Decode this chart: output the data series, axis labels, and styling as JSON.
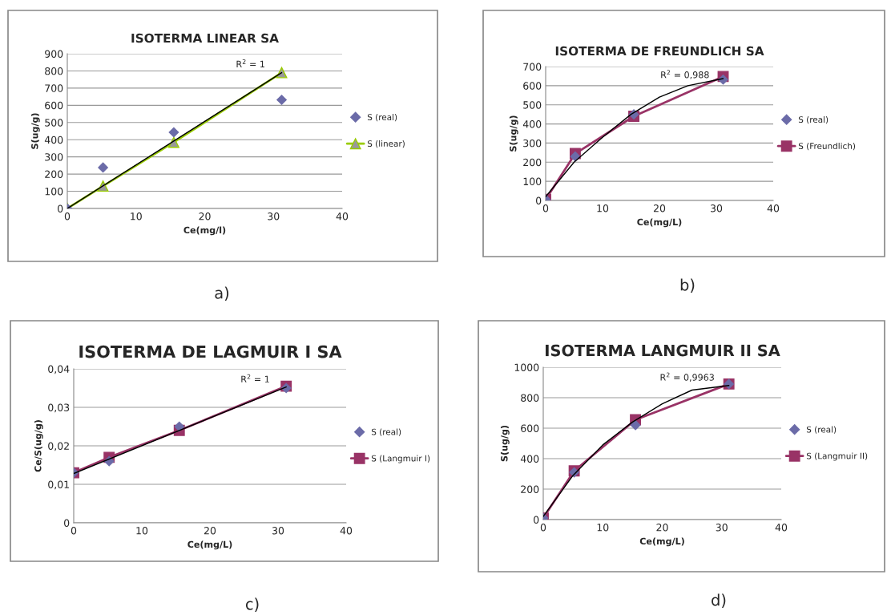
{
  "chart_data": [
    {
      "type": "scatter",
      "title": "ISOTERMA LINEAR SA",
      "xlabel": "Ce(mg/l)",
      "ylabel": "S(ug/g)",
      "x": [
        0,
        5.2,
        15.5,
        31.2
      ],
      "xlim": [
        0,
        40
      ],
      "xticks": [
        0,
        10,
        20,
        30,
        40
      ],
      "ylim": [
        0,
        900
      ],
      "yticks": [
        0,
        100,
        200,
        300,
        400,
        500,
        600,
        700,
        800,
        900
      ],
      "grid": "y",
      "legend": "right",
      "series": [
        {
          "name": "S (real)",
          "marker": "diamond",
          "color": "#6b6ba8",
          "values": [
            0,
            238,
            443,
            632
          ]
        },
        {
          "name": "S (linear)",
          "type": "line",
          "marker": "triangle",
          "color": "#99cc00",
          "values": [
            0,
            130,
            385,
            790
          ]
        },
        {
          "type": "line",
          "marker": "none",
          "color": "#000000",
          "x": [
            0,
            31.2
          ],
          "values": [
            0,
            790
          ]
        }
      ],
      "annotations": [
        "R$^{2}$ = 1",
        "a)"
      ]
    },
    {
      "type": "scatter",
      "title": "ISOTERMA DE FREUNDLICH SA",
      "xlabel": "Ce(mg/L)",
      "ylabel": "S(ug/g)",
      "x": [
        0,
        5.2,
        15.5,
        31.2
      ],
      "xlim": [
        0,
        40
      ],
      "xticks": [
        0,
        10,
        20,
        30,
        40
      ],
      "ylim": [
        0,
        700
      ],
      "yticks": [
        0,
        100,
        200,
        300,
        400,
        500,
        600,
        700
      ],
      "grid": "y",
      "legend": "right",
      "series": [
        {
          "name": "S (real)",
          "marker": "diamond",
          "color": "#6b6ba8",
          "values": [
            5,
            230,
            450,
            632
          ]
        },
        {
          "name": "S (Freundlich)",
          "type": "line",
          "marker": "square",
          "color": "#993366",
          "values": [
            5,
            245,
            440,
            648
          ]
        },
        {
          "type": "line",
          "marker": "none",
          "color": "#000000",
          "x": [
            0,
            5,
            10,
            15,
            20,
            25,
            31.2
          ],
          "values": [
            20,
            200,
            330,
            450,
            540,
            600,
            637
          ]
        }
      ],
      "annotations": [
        "R$^{2}$ = 0,988",
        "b)"
      ]
    },
    {
      "type": "scatter",
      "title": "ISOTERMA DE LAGMUIR I SA",
      "xlabel": "Ce(mg/L)",
      "ylabel": "Ce/S(ug/g)",
      "x": [
        0,
        5.2,
        15.5,
        31.2
      ],
      "xlim": [
        0,
        40
      ],
      "xticks": [
        0,
        10,
        20,
        30,
        40
      ],
      "ylim": [
        0,
        0.04
      ],
      "yticks": [
        0,
        {
          "value": 0.01,
          "label": "0,01"
        },
        {
          "value": 0.02,
          "label": "0,02"
        },
        {
          "value": 0.03,
          "label": "0,03"
        },
        {
          "value": 0.04,
          "label": "0,04"
        }
      ],
      "grid": "y",
      "legend": "right",
      "series": [
        {
          "name": "S (real)",
          "marker": "diamond",
          "color": "#6b6ba8",
          "values": [
            0.013,
            0.016,
            0.025,
            0.035
          ]
        },
        {
          "name": "S (Langmuir I)",
          "type": "line",
          "marker": "square",
          "color": "#993366",
          "values": [
            0.013,
            0.017,
            0.024,
            0.0355
          ]
        },
        {
          "type": "line",
          "marker": "none",
          "color": "#000000",
          "x": [
            0,
            31.2
          ],
          "values": [
            0.0128,
            0.0353
          ]
        }
      ],
      "annotations": [
        "R$^{2}$ = 1",
        "c)"
      ]
    },
    {
      "type": "scatter",
      "title": "ISOTERMA LANGMUIR II SA",
      "xlabel": "Ce(mg/L)",
      "ylabel": "S(ug/g)",
      "x": [
        0,
        5.2,
        15.5,
        31.2
      ],
      "xlim": [
        0,
        40
      ],
      "xticks": [
        0,
        10,
        20,
        30,
        40
      ],
      "ylim": [
        0,
        1000
      ],
      "yticks": [
        0,
        200,
        400,
        600,
        800,
        1000
      ],
      "grid": "y",
      "legend": "right",
      "series": [
        {
          "name": "S (real)",
          "marker": "diamond",
          "color": "#6b6ba8",
          "values": [
            10,
            310,
            620,
            890
          ]
        },
        {
          "name": "S (Langmuir II)",
          "type": "line",
          "marker": "square",
          "color": "#993366",
          "values": [
            10,
            320,
            655,
            890
          ]
        },
        {
          "type": "line",
          "marker": "none",
          "color": "#000000",
          "x": [
            0,
            5,
            10,
            15,
            20,
            25,
            31.2
          ],
          "values": [
            20,
            290,
            490,
            640,
            760,
            850,
            880
          ]
        }
      ],
      "annotations": [
        "R$^{2}$ = 0,9963",
        "d)"
      ]
    }
  ]
}
